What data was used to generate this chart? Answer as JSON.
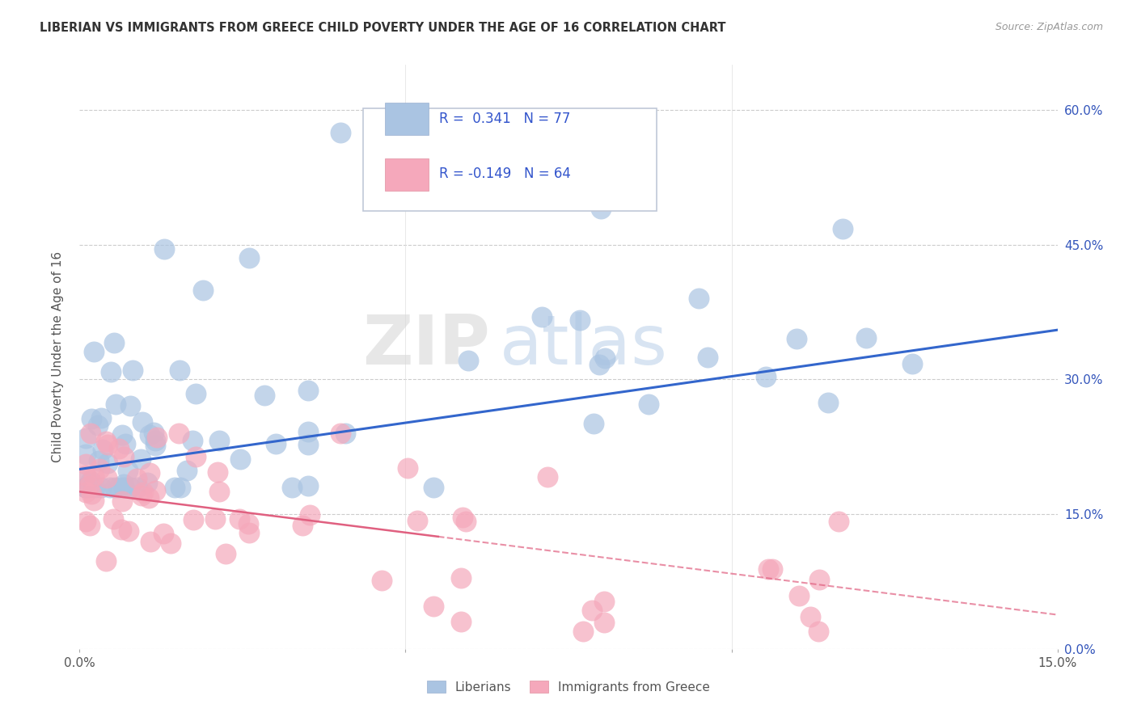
{
  "title": "LIBERIAN VS IMMIGRANTS FROM GREECE CHILD POVERTY UNDER THE AGE OF 16 CORRELATION CHART",
  "source": "Source: ZipAtlas.com",
  "ylabel": "Child Poverty Under the Age of 16",
  "xlim": [
    0.0,
    0.15
  ],
  "ylim": [
    0.0,
    0.65
  ],
  "xticks": [
    0.0,
    0.05,
    0.1,
    0.15
  ],
  "yticks": [
    0.0,
    0.15,
    0.3,
    0.45,
    0.6
  ],
  "xticklabels": [
    "0.0%",
    "",
    "",
    "15.0%"
  ],
  "yticklabels_right": [
    "0.0%",
    "15.0%",
    "30.0%",
    "45.0%",
    "60.0%"
  ],
  "liberian_color": "#aac4e2",
  "greece_color": "#f5a8bb",
  "liberian_line_color": "#3366cc",
  "greece_line_color": "#e06080",
  "R_liberian": 0.341,
  "N_liberian": 77,
  "R_greece": -0.149,
  "N_greece": 64,
  "legend_label_1": "Liberians",
  "legend_label_2": "Immigrants from Greece",
  "watermark_zip": "ZIP",
  "watermark_atlas": "atlas",
  "background_color": "#ffffff",
  "grid_color": "#cccccc",
  "lib_line_x0": 0.0,
  "lib_line_y0": 0.2,
  "lib_line_x1": 0.15,
  "lib_line_y1": 0.355,
  "gre_line_solid_x0": 0.0,
  "gre_line_solid_y0": 0.175,
  "gre_line_solid_x1": 0.055,
  "gre_line_solid_y1": 0.125,
  "gre_line_dash_x0": 0.055,
  "gre_line_dash_y0": 0.125,
  "gre_line_dash_x1": 0.15,
  "gre_line_dash_y1": 0.038
}
